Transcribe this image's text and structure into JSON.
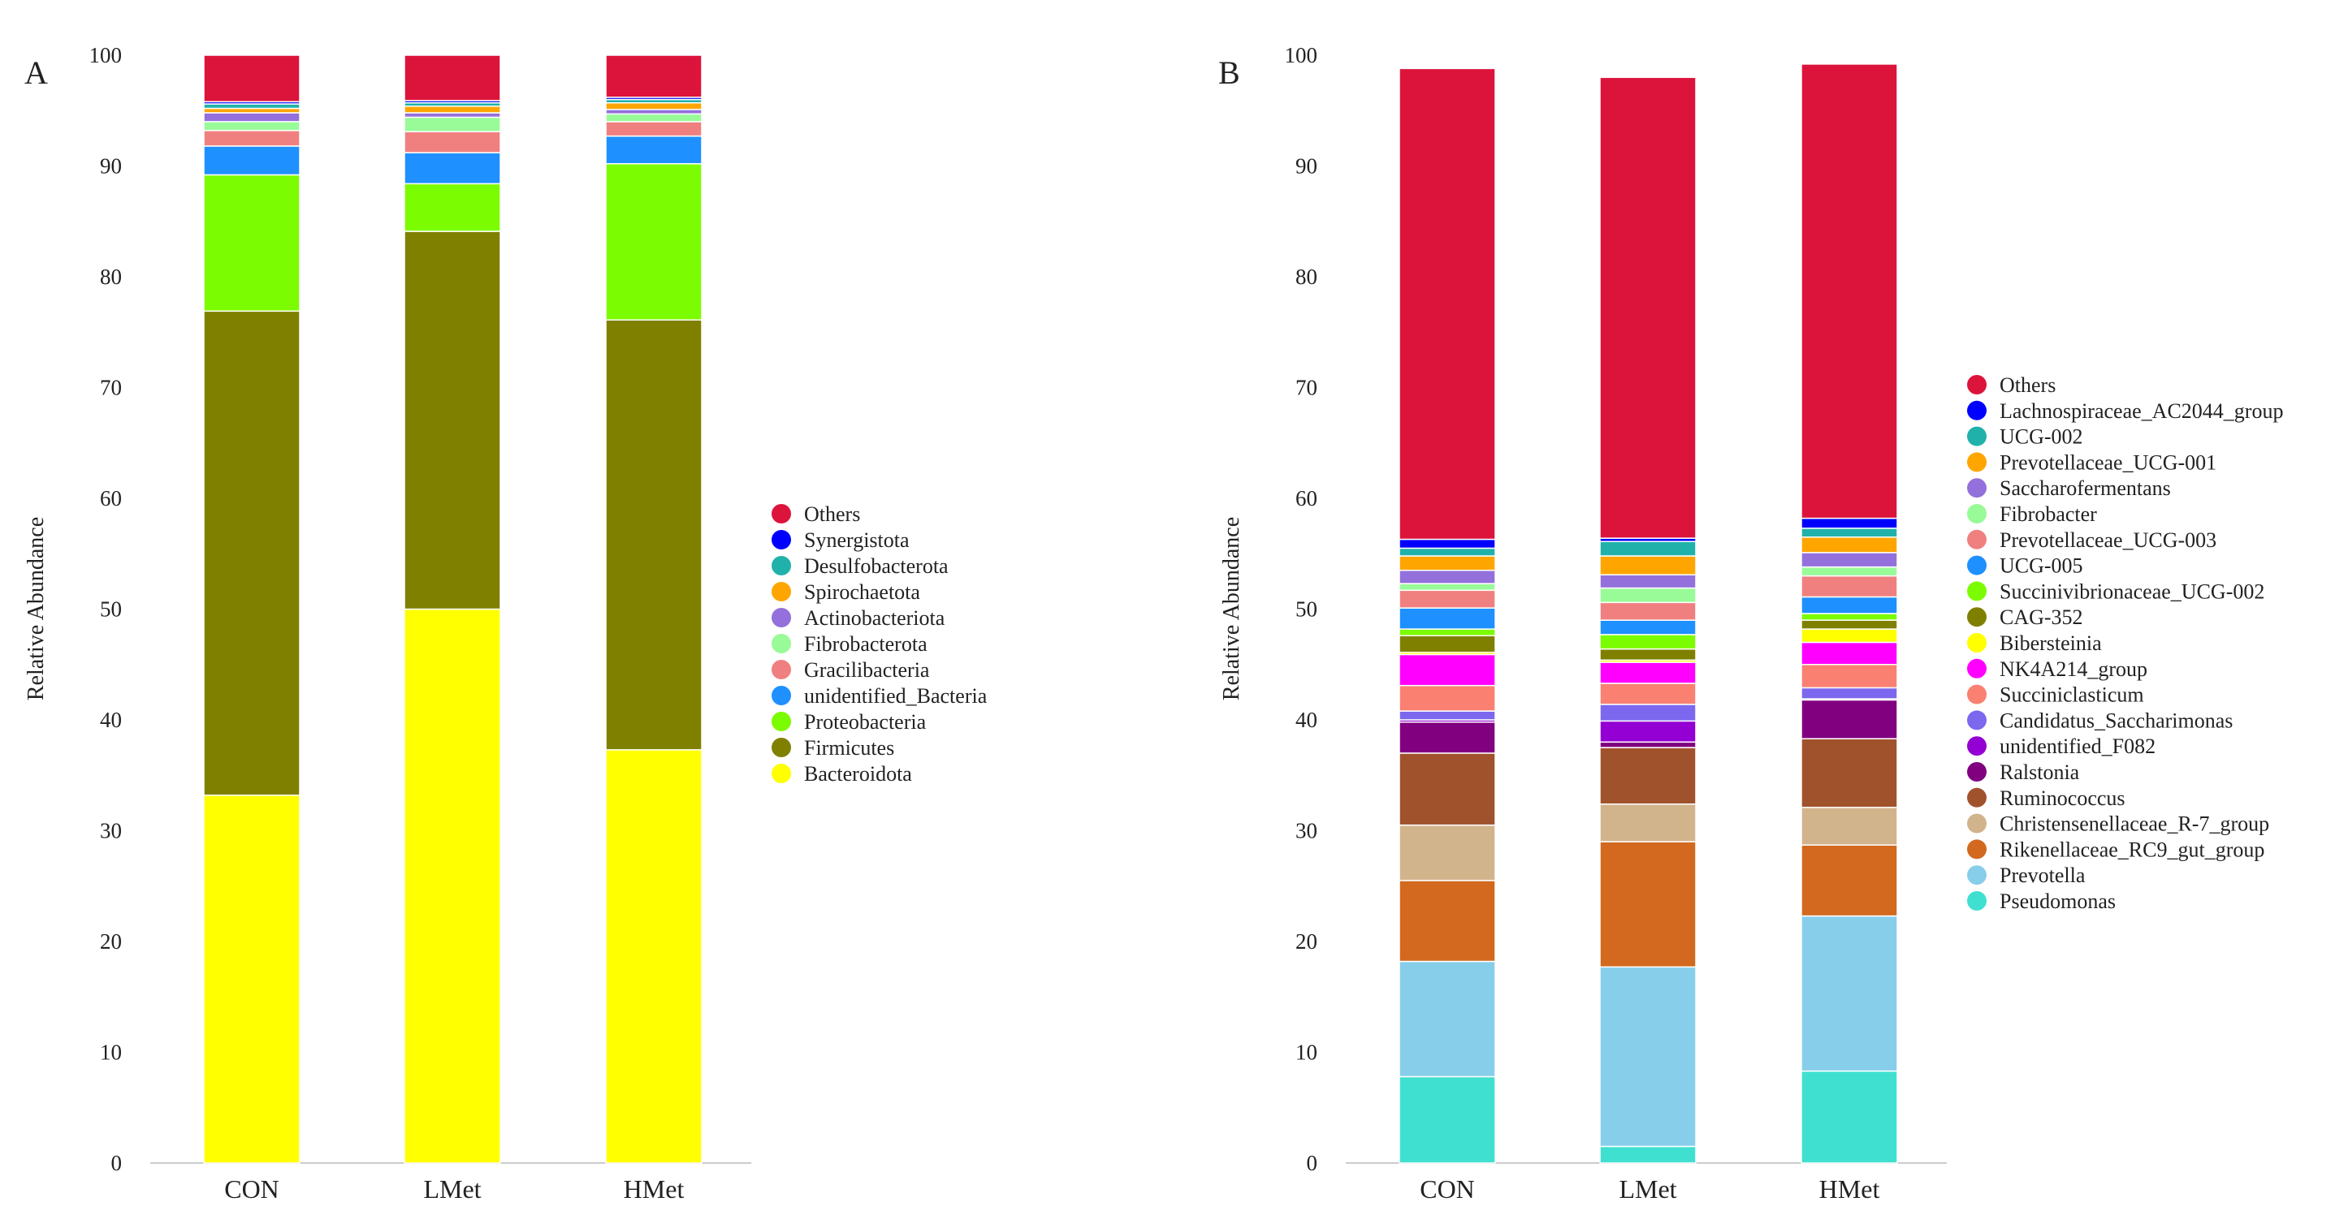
{
  "figure": {
    "panels": [
      "A",
      "B"
    ]
  },
  "chart_data": [
    {
      "type": "bar",
      "stacked": true,
      "panel_label": "A",
      "title": "",
      "xlabel": "",
      "ylabel": "Relative Abundance",
      "ylim": [
        0,
        100
      ],
      "yticks": [
        0,
        10,
        20,
        30,
        40,
        50,
        60,
        70,
        80,
        90,
        100
      ],
      "categories": [
        "CON",
        "LMet",
        "HMet"
      ],
      "grid": false,
      "legend_position": "right",
      "series": [
        {
          "name": "Bacteroidota",
          "color": "#FFFF00",
          "values": [
            33.2,
            50.0,
            37.3
          ]
        },
        {
          "name": "Firmicutes",
          "color": "#808000",
          "values": [
            43.7,
            34.1,
            38.8
          ]
        },
        {
          "name": "Proteobacteria",
          "color": "#7CFC00",
          "values": [
            12.3,
            4.3,
            14.1
          ]
        },
        {
          "name": "unidentified_Bacteria",
          "color": "#1E90FF",
          "values": [
            2.6,
            2.8,
            2.5
          ]
        },
        {
          "name": "Gracilibacteria",
          "color": "#F08080",
          "values": [
            1.4,
            1.9,
            1.3
          ]
        },
        {
          "name": "Fibrobacterota",
          "color": "#98FB98",
          "values": [
            0.8,
            1.3,
            0.7
          ]
        },
        {
          "name": "Actinobacteriota",
          "color": "#9370DB",
          "values": [
            0.8,
            0.4,
            0.4
          ]
        },
        {
          "name": "Spirochaetota",
          "color": "#FFA500",
          "values": [
            0.4,
            0.6,
            0.6
          ]
        },
        {
          "name": "Desulfobacterota",
          "color": "#20B2AA",
          "values": [
            0.4,
            0.3,
            0.3
          ]
        },
        {
          "name": "Synergistota",
          "color": "#0000FF",
          "values": [
            0.2,
            0.2,
            0.2
          ]
        },
        {
          "name": "Others",
          "color": "#DC143C",
          "values": [
            4.2,
            4.1,
            3.8
          ]
        }
      ],
      "legend_order": [
        "Others",
        "Synergistota",
        "Desulfobacterota",
        "Spirochaetota",
        "Actinobacteriota",
        "Fibrobacterota",
        "Gracilibacteria",
        "unidentified_Bacteria",
        "Proteobacteria",
        "Firmicutes",
        "Bacteroidota"
      ]
    },
    {
      "type": "bar",
      "stacked": true,
      "panel_label": "B",
      "title": "",
      "xlabel": "",
      "ylabel": "Relative Abundance",
      "ylim": [
        0,
        100
      ],
      "yticks": [
        0,
        10,
        20,
        30,
        40,
        50,
        60,
        70,
        80,
        90,
        100
      ],
      "categories": [
        "CON",
        "LMet",
        "HMet"
      ],
      "grid": false,
      "legend_position": "right",
      "series": [
        {
          "name": "Pseudomonas",
          "color": "#40E0D0",
          "values": [
            7.8,
            1.5,
            8.3
          ]
        },
        {
          "name": "Prevotella",
          "color": "#87CEEB",
          "values": [
            10.4,
            16.2,
            14.0
          ]
        },
        {
          "name": "Rikenellaceae_RC9_gut_group",
          "color": "#D2691E",
          "values": [
            7.3,
            11.3,
            6.4
          ]
        },
        {
          "name": "Christensenellaceae_R-7_group",
          "color": "#D2B48C",
          "values": [
            5.0,
            3.4,
            3.4
          ]
        },
        {
          "name": "Ruminococcus",
          "color": "#A0522D",
          "values": [
            6.5,
            5.1,
            6.2
          ]
        },
        {
          "name": "Ralstonia",
          "color": "#800080",
          "values": [
            2.8,
            0.5,
            3.5
          ]
        },
        {
          "name": "unidentified_F082",
          "color": "#9400D3",
          "values": [
            0.2,
            1.9,
            0.1
          ]
        },
        {
          "name": "Candidatus_Saccharimonas",
          "color": "#7B68EE",
          "values": [
            0.8,
            1.5,
            1.0
          ]
        },
        {
          "name": "Succiniclasticum",
          "color": "#FA8072",
          "values": [
            2.3,
            1.9,
            2.1
          ]
        },
        {
          "name": "NK4A214_group",
          "color": "#FF00FF",
          "values": [
            2.8,
            1.9,
            2.0
          ]
        },
        {
          "name": "Bibersteinia",
          "color": "#FFFF00",
          "values": [
            0.2,
            0.2,
            1.2
          ]
        },
        {
          "name": "CAG-352",
          "color": "#808000",
          "values": [
            1.5,
            1.0,
            0.8
          ]
        },
        {
          "name": "Succinivibrionaceae_UCG-002",
          "color": "#7CFC00",
          "values": [
            0.6,
            1.3,
            0.6
          ]
        },
        {
          "name": "UCG-005",
          "color": "#1E90FF",
          "values": [
            1.9,
            1.3,
            1.5
          ]
        },
        {
          "name": "Prevotellaceae_UCG-003",
          "color": "#F08080",
          "values": [
            1.6,
            1.6,
            1.9
          ]
        },
        {
          "name": "Fibrobacter",
          "color": "#98FB98",
          "values": [
            0.6,
            1.3,
            0.8
          ]
        },
        {
          "name": "Saccharofermentans",
          "color": "#9370DB",
          "values": [
            1.2,
            1.2,
            1.3
          ]
        },
        {
          "name": "Prevotellaceae_UCG-001",
          "color": "#FFA500",
          "values": [
            1.3,
            1.7,
            1.4
          ]
        },
        {
          "name": "UCG-002",
          "color": "#20B2AA",
          "values": [
            0.7,
            1.3,
            0.8
          ]
        },
        {
          "name": "Lachnospiraceae_AC2044_group",
          "color": "#0000FF",
          "values": [
            0.8,
            0.3,
            0.9
          ]
        },
        {
          "name": "Others",
          "color": "#DC143C",
          "values": [
            42.5,
            41.6,
            41.0
          ]
        }
      ],
      "legend_order": [
        "Others",
        "Lachnospiraceae_AC2044_group",
        "UCG-002",
        "Prevotellaceae_UCG-001",
        "Saccharofermentans",
        "Fibrobacter",
        "Prevotellaceae_UCG-003",
        "UCG-005",
        "Succinivibrionaceae_UCG-002",
        "CAG-352",
        "Bibersteinia",
        "NK4A214_group",
        "Succiniclasticum",
        "Candidatus_Saccharimonas",
        "unidentified_F082",
        "Ralstonia",
        "Ruminococcus",
        "Christensenellaceae_R-7_group",
        "Rikenellaceae_RC9_gut_group",
        "Prevotella",
        "Pseudomonas"
      ]
    }
  ]
}
